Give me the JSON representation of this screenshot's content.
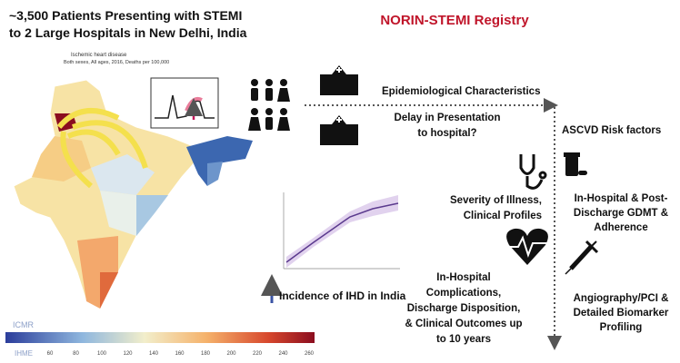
{
  "header": {
    "title_lines": [
      "~3,500 Patients Presenting with STEMI",
      "to 2 Large Hospitals in New Delhi, India"
    ],
    "registry": "NORIN-STEMI Registry"
  },
  "map": {
    "title": "Ischemic heart disease",
    "subtitle": "Both sexes, All ages, 2016, Deaths per 100,000",
    "scale_ticks": [
      60,
      80,
      100,
      120,
      140,
      160,
      180,
      200,
      220,
      240,
      260
    ],
    "logos": [
      "ICMR",
      "IHME"
    ]
  },
  "inset": {
    "caption": "Incidence of IHD in India"
  },
  "items": [
    {
      "lines": [
        "Epidemiological Characteristics"
      ]
    },
    {
      "lines": [
        "Delay in Presentation",
        "to hospital?"
      ]
    },
    {
      "lines": [
        "ASCVD Risk factors"
      ]
    },
    {
      "lines": [
        "Severity of Illness,",
        "Clinical Profiles"
      ]
    },
    {
      "lines": [
        "In-Hospital & Post-",
        "Discharge GDMT &",
        "Adherence"
      ]
    },
    {
      "lines": [
        "In-Hospital",
        "Complications,",
        "Discharge Disposition,",
        "& Clinical Outcomes up",
        "to 10 years"
      ]
    },
    {
      "lines": [
        "Angiography/PCI &",
        "Detailed Biomarker",
        "Profiling"
      ]
    }
  ]
}
